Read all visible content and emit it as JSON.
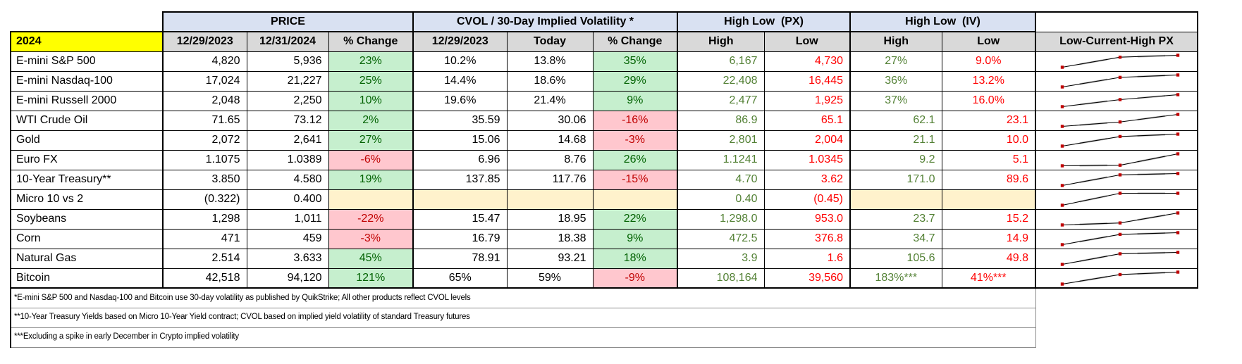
{
  "table": {
    "year_label": "2024",
    "groups": [
      {
        "label": "PRICE"
      },
      {
        "label": "CVOL / 30-Day Implied Volatility *"
      },
      {
        "label": "High Low  (PX)"
      },
      {
        "label": "High Low  (IV)"
      }
    ],
    "columns": [
      "12/29/2023",
      "12/31/2024",
      "% Change",
      "12/29/2023",
      "Today",
      "% Change",
      "High",
      "Low",
      "High",
      "Low"
    ],
    "sparkline_header": "Low-Current-High PX",
    "rows": [
      {
        "name": "E-mini S&P 500",
        "price_start": "4,820",
        "price_end": "5,936",
        "price_change": "23%",
        "price_change_dir": "up",
        "cvol_start": "10.2%",
        "cvol_today": "13.8%",
        "cvol_change": "35%",
        "cvol_change_dir": "up",
        "px_high": "6,167",
        "px_low": "4,730",
        "iv_high": "27%",
        "iv_low": "9.0%",
        "spark": {
          "low": 4730,
          "current": 5936,
          "high": 6167
        }
      },
      {
        "name": "E-mini Nasdaq-100",
        "price_start": "17,024",
        "price_end": "21,227",
        "price_change": "25%",
        "price_change_dir": "up",
        "cvol_start": "14.4%",
        "cvol_today": "18.6%",
        "cvol_change": "29%",
        "cvol_change_dir": "up",
        "px_high": "22,408",
        "px_low": "16,445",
        "iv_high": "36%",
        "iv_low": "13.2%",
        "spark": {
          "low": 16445,
          "current": 21227,
          "high": 22408
        }
      },
      {
        "name": "E-mini Russell 2000",
        "price_start": "2,048",
        "price_end": "2,250",
        "price_change": "10%",
        "price_change_dir": "up",
        "cvol_start": "19.6%",
        "cvol_today": "21.4%",
        "cvol_change": "9%",
        "cvol_change_dir": "up",
        "px_high": "2,477",
        "px_low": "1,925",
        "iv_high": "37%",
        "iv_low": "16.0%",
        "spark": {
          "low": 1925,
          "current": 2250,
          "high": 2477
        }
      },
      {
        "name": "WTI Crude Oil",
        "price_start": "71.65",
        "price_end": "73.12",
        "price_change": "2%",
        "price_change_dir": "up",
        "cvol_start": "35.59",
        "cvol_today": "30.06",
        "cvol_change": "-16%",
        "cvol_change_dir": "down",
        "px_high": "86.9",
        "px_low": "65.1",
        "iv_high": "62.1",
        "iv_low": "23.1",
        "spark": {
          "low": 65.1,
          "current": 73.12,
          "high": 86.9
        }
      },
      {
        "name": "Gold",
        "price_start": "2,072",
        "price_end": "2,641",
        "price_change": "27%",
        "price_change_dir": "up",
        "cvol_start": "15.06",
        "cvol_today": "14.68",
        "cvol_change": "-3%",
        "cvol_change_dir": "down",
        "px_high": "2,801",
        "px_low": "2,004",
        "iv_high": "21.1",
        "iv_low": "10.0",
        "spark": {
          "low": 2004,
          "current": 2641,
          "high": 2801
        }
      },
      {
        "name": "Euro FX",
        "price_start": "1.1075",
        "price_end": "1.0389",
        "price_change": "-6%",
        "price_change_dir": "down",
        "cvol_start": "6.96",
        "cvol_today": "8.76",
        "cvol_change": "26%",
        "cvol_change_dir": "up",
        "px_high": "1.1241",
        "px_low": "1.0345",
        "iv_high": "9.2",
        "iv_low": "5.1",
        "spark": {
          "low": 1.0345,
          "current": 1.0389,
          "high": 1.1241
        }
      },
      {
        "name": "10-Year Treasury**",
        "price_start": "3.850",
        "price_end": "4.580",
        "price_change": "19%",
        "price_change_dir": "up",
        "cvol_start": "137.85",
        "cvol_today": "117.76",
        "cvol_change": "-15%",
        "cvol_change_dir": "down",
        "px_high": "4.70",
        "px_low": "3.62",
        "iv_high": "171.0",
        "iv_low": "89.6",
        "spark": {
          "low": 3.62,
          "current": 4.58,
          "high": 4.7
        }
      },
      {
        "name": "Micro 10 vs 2",
        "price_start": "(0.322)",
        "price_end": "0.400",
        "price_change": "",
        "price_change_dir": "na",
        "cvol_start": "",
        "cvol_today": "",
        "cvol_change": "",
        "cvol_change_dir": "na",
        "px_high": "0.40",
        "px_low": "(0.45)",
        "iv_high": "",
        "iv_low": "",
        "spark": {
          "low": -0.45,
          "current": 0.4,
          "high": 0.4
        }
      },
      {
        "name": "Soybeans",
        "price_start": "1,298",
        "price_end": "1,011",
        "price_change": "-22%",
        "price_change_dir": "down",
        "cvol_start": "15.47",
        "cvol_today": "18.95",
        "cvol_change": "22%",
        "cvol_change_dir": "up",
        "px_high": "1,298.0",
        "px_low": "953.0",
        "iv_high": "23.7",
        "iv_low": "15.2",
        "spark": {
          "low": 953,
          "current": 1011,
          "high": 1298
        }
      },
      {
        "name": "Corn",
        "price_start": "471",
        "price_end": "459",
        "price_change": "-3%",
        "price_change_dir": "down",
        "cvol_start": "16.79",
        "cvol_today": "18.38",
        "cvol_change": "9%",
        "cvol_change_dir": "up",
        "px_high": "472.5",
        "px_low": "376.8",
        "iv_high": "34.7",
        "iv_low": "14.9",
        "spark": {
          "low": 376.8,
          "current": 459,
          "high": 472.5
        }
      },
      {
        "name": "Natural Gas",
        "price_start": "2.514",
        "price_end": "3.633",
        "price_change": "45%",
        "price_change_dir": "up",
        "cvol_start": "78.91",
        "cvol_today": "93.21",
        "cvol_change": "18%",
        "cvol_change_dir": "up",
        "px_high": "3.9",
        "px_low": "1.6",
        "iv_high": "105.6",
        "iv_low": "49.8",
        "spark": {
          "low": 1.6,
          "current": 3.633,
          "high": 3.9
        }
      },
      {
        "name": "Bitcoin",
        "price_start": "42,518",
        "price_end": "94,120",
        "price_change": "121%",
        "price_change_dir": "up",
        "cvol_start": "65%",
        "cvol_today": "59%",
        "cvol_change": "-9%",
        "cvol_change_dir": "down",
        "px_high": "108,164",
        "px_low": "39,560",
        "iv_high": "183%***",
        "iv_low": "41%***",
        "spark": {
          "low": 39560,
          "current": 94120,
          "high": 108164
        }
      }
    ],
    "footnotes": [
      "*E-mini S&P 500 and Nasdaq-100 and Bitcoin use 30-day volatility as published by QuikStrike; All other products reflect CVOL levels",
      "**10-Year Treasury Yields based on Micro 10-Year Yield contract; CVOL based on implied yield volatility of standard Treasury futures",
      "***Excluding a spike in early December in Crypto implied volatility"
    ]
  },
  "colors": {
    "group_header_bg": "#D9E1F2",
    "column_header_bg": "#D9D9D9",
    "year_bg": "#FFFF00",
    "positive_bg": "#C6EFCE",
    "positive_text": "#006100",
    "negative_bg": "#FFC7CE",
    "negative_text": "#C00000",
    "neutral_bg": "#FFF2CC",
    "high_text": "#538135",
    "low_text": "#FF0000",
    "spark_line": "#000000",
    "spark_smudge": "#A6A6A6",
    "spark_marker": "#C00000"
  }
}
